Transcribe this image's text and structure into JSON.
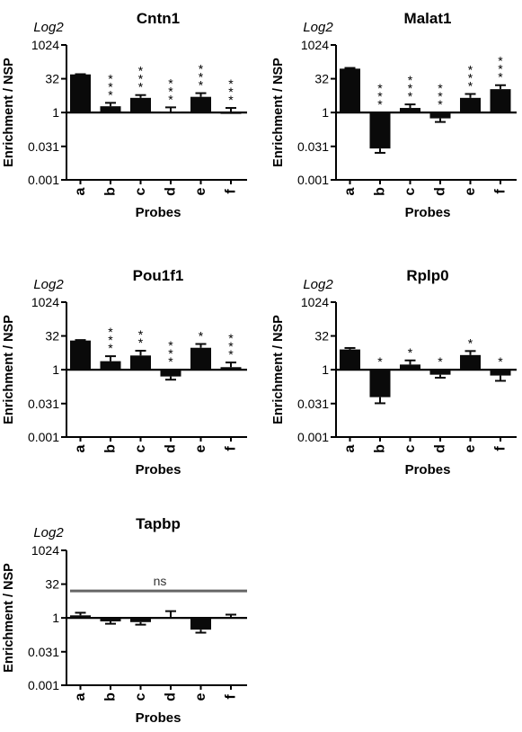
{
  "chart_data": [
    {
      "type": "bar",
      "title": "Cntn1",
      "scale_label": "Log2",
      "ylabel": "Enrichment / NSP",
      "xlabel": "Probes",
      "y_scale": "log2",
      "ylim": [
        0.001,
        1024
      ],
      "yticks": [
        0.001,
        0.031,
        1,
        32,
        1024
      ],
      "ytick_labels": [
        "0.001",
        "0.031",
        "1",
        "32",
        "1024"
      ],
      "baseline": 1,
      "categories": [
        "a",
        "b",
        "c",
        "d",
        "e",
        "f"
      ],
      "values": [
        50,
        1.9,
        4.5,
        1.1,
        5.0,
        1.0
      ],
      "error_bars": [
        1.1,
        0.8,
        1.5,
        0.6,
        2.3,
        0.6
      ],
      "significance": [
        "",
        "***",
        "***",
        "***",
        "***",
        "***"
      ],
      "ns_label": ""
    },
    {
      "type": "bar",
      "title": "Malat1",
      "scale_label": "Log2",
      "ylabel": "Enrichment / NSP",
      "xlabel": "Probes",
      "y_scale": "log2",
      "ylim": [
        0.001,
        1024
      ],
      "yticks": [
        0.001,
        0.031,
        1,
        32,
        1024
      ],
      "ytick_labels": [
        "0.001",
        "0.031",
        "1",
        "32",
        "1024"
      ],
      "baseline": 1,
      "categories": [
        "a",
        "b",
        "c",
        "d",
        "e",
        "f"
      ],
      "values": [
        90,
        0.025,
        1.6,
        0.55,
        4.5,
        11
      ],
      "error_bars": [
        7,
        0.009,
        0.7,
        0.17,
        2.2,
        5.5
      ],
      "significance": [
        "",
        "***",
        "***",
        "***",
        "***",
        "***"
      ],
      "ns_label": ""
    },
    {
      "type": "bar",
      "title": "Pou1f1",
      "scale_label": "Log2",
      "ylabel": "Enrichment / NSP",
      "xlabel": "Probes",
      "y_scale": "log2",
      "ylim": [
        0.001,
        1024
      ],
      "yticks": [
        0.001,
        0.031,
        1,
        32,
        1024
      ],
      "ytick_labels": [
        "0.001",
        "0.031",
        "1",
        "32",
        "1024"
      ],
      "baseline": 1,
      "categories": [
        "a",
        "b",
        "c",
        "d",
        "e",
        "f"
      ],
      "values": [
        20,
        2.4,
        4.3,
        0.5,
        9.5,
        1.3
      ],
      "error_bars": [
        1.0,
        1.6,
        2.7,
        0.14,
        4.5,
        0.8
      ],
      "significance": [
        "",
        "***",
        "**",
        "***",
        "*",
        "***"
      ],
      "ns_label": ""
    },
    {
      "type": "bar",
      "title": "Rplp0",
      "scale_label": "Log2",
      "ylabel": "Enrichment / NSP",
      "xlabel": "Probes",
      "y_scale": "log2",
      "ylim": [
        0.001,
        1024
      ],
      "yticks": [
        0.001,
        0.031,
        1,
        32,
        1024
      ],
      "ytick_labels": [
        "0.001",
        "0.031",
        "1",
        "32",
        "1024"
      ],
      "baseline": 1,
      "categories": [
        "a",
        "b",
        "c",
        "d",
        "e",
        "f"
      ],
      "values": [
        8,
        0.06,
        1.7,
        0.6,
        4.5,
        0.55
      ],
      "error_bars": [
        1.3,
        0.028,
        0.9,
        0.16,
        2.3,
        0.23
      ],
      "significance": [
        "",
        "*",
        "*",
        "*",
        "*",
        "*"
      ],
      "ns_label": ""
    },
    {
      "type": "bar",
      "title": "Tapbp",
      "scale_label": "Log2",
      "ylabel": "Enrichment / NSP",
      "xlabel": "Probes",
      "y_scale": "log2",
      "ylim": [
        0.001,
        1024
      ],
      "yticks": [
        0.001,
        0.031,
        1,
        32,
        1024
      ],
      "ytick_labels": [
        "0.001",
        "0.031",
        "1",
        "32",
        "1024"
      ],
      "baseline": 1,
      "categories": [
        "a",
        "b",
        "c",
        "d",
        "e",
        "f"
      ],
      "values": [
        1.3,
        0.7,
        0.65,
        1.1,
        0.3,
        1.1
      ],
      "error_bars": [
        0.4,
        0.15,
        0.15,
        0.9,
        0.08,
        0.3
      ],
      "significance": [
        "",
        "",
        "",
        "",
        "",
        ""
      ],
      "ns_label": "ns"
    }
  ],
  "colors": {
    "bar": "#0a0a0a",
    "axis": "#000000",
    "ns_line": "#666666"
  }
}
